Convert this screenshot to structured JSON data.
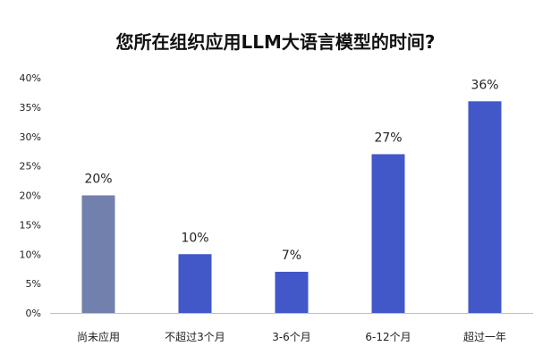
{
  "chart_data": {
    "type": "bar",
    "title": "您所在组织应用LLM大语言模型的时间?",
    "categories": [
      "尚未应用",
      "不超过3个月",
      "3-6个月",
      "6-12个月",
      "超过一年"
    ],
    "values": [
      20,
      10,
      7,
      27,
      36
    ],
    "data_labels": [
      "20%",
      "10%",
      "7%",
      "27%",
      "36%"
    ],
    "ylim": [
      0,
      40
    ],
    "y_ticks": [
      "0%",
      "5%",
      "10%",
      "15%",
      "20%",
      "25%",
      "30%",
      "35%",
      "40%"
    ],
    "y_tick_values": [
      0,
      5,
      10,
      15,
      20,
      25,
      30,
      35,
      40
    ],
    "bar_colors": [
      "#7280ad",
      "#4257c8",
      "#4257c8",
      "#4257c8",
      "#4257c8"
    ],
    "axis_color": "#bfbfbf",
    "grid": false,
    "legend": "none"
  }
}
